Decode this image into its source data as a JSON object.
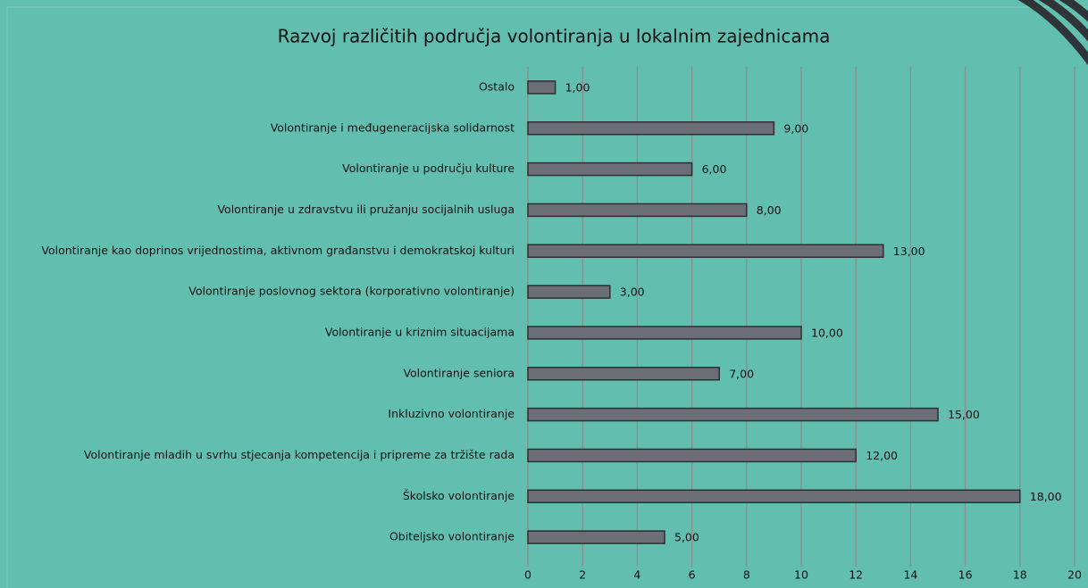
{
  "chart_data": {
    "type": "bar",
    "orientation": "horizontal",
    "title": "Razvoj različitih područja volontiranja u lokalnim zajednicama",
    "categories": [
      "Ostalo",
      "Volontiranje i međugeneracijska solidarnost",
      "Volontiranje u području kulture",
      "Volontiranje u zdravstvu ili pružanju socijalnih usluga",
      "Volontiranje kao doprinos vrijednostima, aktivnom građanstvu i demokratskoj kulturi",
      "Volontiranje poslovnog sektora (korporativno volontiranje)",
      "Volontiranje u kriznim situacijama",
      "Volontiranje seniora",
      "Inkluzivno volontiranje",
      "Volontiranje mladih u svrhu stjecanja kompetencija i pripreme za tržište rada",
      "Školsko volontiranje",
      "Obiteljsko volontiranje"
    ],
    "values": [
      1,
      9,
      6,
      8,
      13,
      3,
      10,
      7,
      15,
      12,
      18,
      5
    ],
    "value_labels": [
      "1,00",
      "9,00",
      "6,00",
      "8,00",
      "13,00",
      "3,00",
      "10,00",
      "7,00",
      "15,00",
      "12,00",
      "18,00",
      "5,00"
    ],
    "color": "#6b6e75",
    "xlim": [
      0,
      20
    ],
    "xticks": [
      0,
      2,
      4,
      6,
      8,
      10,
      12,
      14,
      16,
      18,
      20
    ],
    "grid": true
  }
}
